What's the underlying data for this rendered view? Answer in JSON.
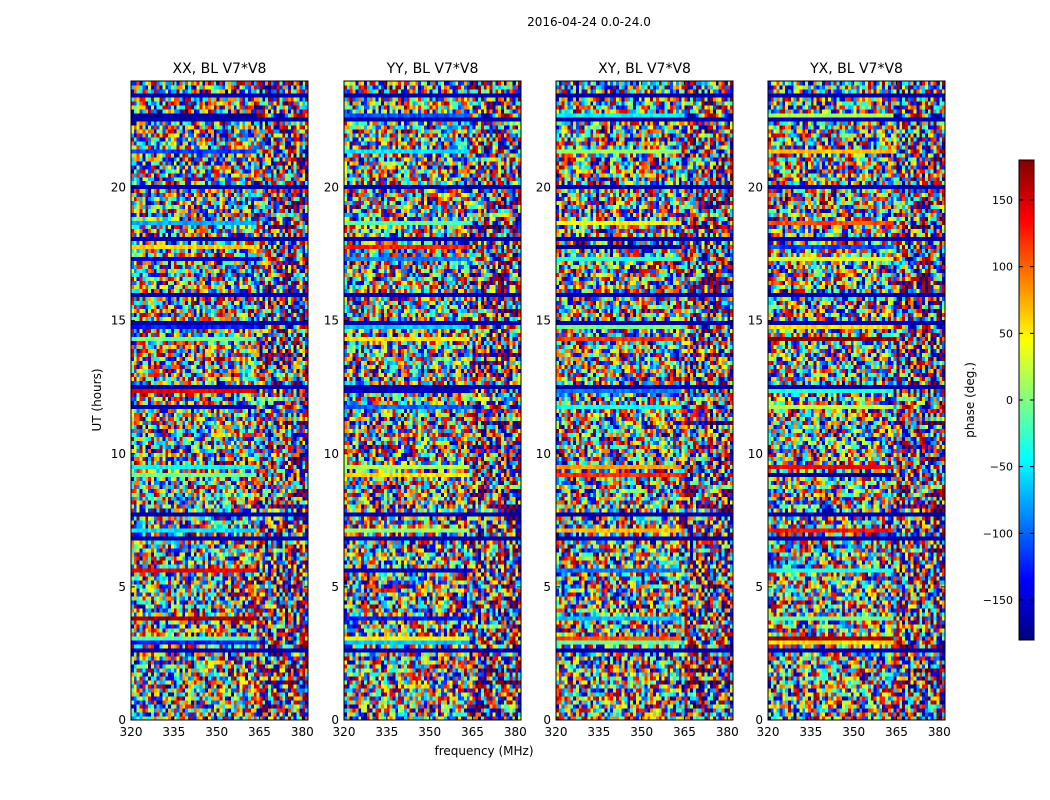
{
  "chart_data": {
    "type": "heatmap",
    "title": "2016-04-24 0.0-24.0",
    "ylabel": "UT (hours)",
    "xlabel": "frequency (MHz)",
    "xlim": [
      320,
      382
    ],
    "ylim": [
      0,
      24
    ],
    "x_ticks": [
      "320",
      "335",
      "350",
      "365",
      "380"
    ],
    "x_tick_values": [
      320,
      335,
      350,
      365,
      380
    ],
    "y_ticks": [
      "0",
      "5",
      "10",
      "15",
      "20"
    ],
    "y_tick_values": [
      0,
      5,
      10,
      15,
      20
    ],
    "panels": [
      {
        "title": "XX, BL V7*V8"
      },
      {
        "title": "YY, BL V7*V8"
      },
      {
        "title": "XY, BL V7*V8"
      },
      {
        "title": "YX, BL V7*V8"
      }
    ],
    "colorbar": {
      "label": "phase (deg.)",
      "range": [
        -180,
        180
      ],
      "ticks": [
        "150",
        "100",
        "50",
        "0",
        "−50",
        "−100",
        "−150"
      ],
      "tick_values": [
        150,
        100,
        50,
        0,
        -50,
        -100,
        -150
      ],
      "colormap": [
        "#000080",
        "#0000ff",
        "#0080ff",
        "#00ffff",
        "#80ff80",
        "#ffff00",
        "#ff8000",
        "#ff0000",
        "#800000"
      ]
    }
  }
}
